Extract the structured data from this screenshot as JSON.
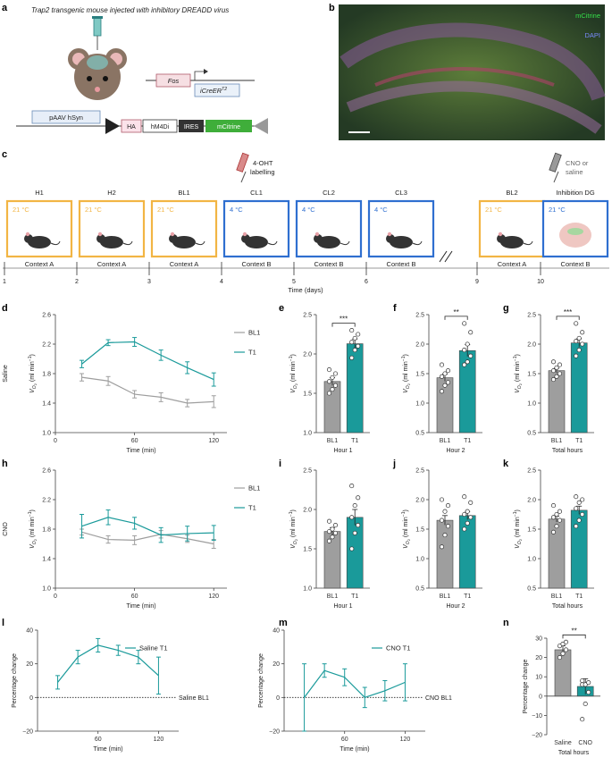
{
  "panel_labels": {
    "a": "a",
    "b": "b",
    "c": "c",
    "d": "d",
    "e": "e",
    "f": "f",
    "g": "g",
    "h": "h",
    "i": "i",
    "j": "j",
    "k": "k",
    "l": "l",
    "m": "m",
    "n": "n"
  },
  "panel_a": {
    "title": "Trap2 transgenic mouse injected with inhibitory DREADD virus",
    "fos_label": "Fos",
    "icre_label": "iCreER",
    "icre_sup": "T2",
    "construct": [
      "pAAV hSyn",
      "HA",
      "hM4Di",
      "IRES",
      "mCitrine"
    ]
  },
  "panel_b": {
    "legend_mcitrine": "mCitrine",
    "legend_dapi": "DAPI"
  },
  "panel_c": {
    "labelling": [
      "4-OHT",
      "labelling"
    ],
    "cno": [
      "CNO or",
      "saline"
    ],
    "sessions": [
      {
        "name": "H1",
        "temp": "21 °C",
        "context": "Context A",
        "day": "1",
        "color": "#F2B544"
      },
      {
        "name": "H2",
        "temp": "21 °C",
        "context": "Context A",
        "day": "2",
        "color": "#F2B544"
      },
      {
        "name": "BL1",
        "temp": "21 °C",
        "context": "Context A",
        "day": "3",
        "color": "#F2B544"
      },
      {
        "name": "CL1",
        "temp": "4 °C",
        "context": "Context B",
        "day": "4",
        "color": "#2F6FD0"
      },
      {
        "name": "CL2",
        "temp": "4 °C",
        "context": "Context B",
        "day": "5",
        "color": "#2F6FD0"
      },
      {
        "name": "CL3",
        "temp": "4 °C",
        "context": "Context B",
        "day": "6",
        "color": "#2F6FD0"
      },
      {
        "name": "BL2",
        "temp": "21 °C",
        "context": "Context A",
        "day": "9",
        "color": "#F2B544"
      },
      {
        "name": "Inhibition DG",
        "temp": "21 °C",
        "context": "Context B",
        "day": "10",
        "color": "#2F6FD0"
      }
    ],
    "axis_label": "Time (days)"
  },
  "common": {
    "vo2_label": "V",
    "vo2_sub": "O",
    "vo2_subsub": "2",
    "vo2_unit": " (ml min",
    "vo2_unit_sup": "−1",
    "vo2_unit_end": ")",
    "time_label": "Time (min)",
    "pct_label": "Percentage change"
  },
  "chart_data": [
    {
      "panel": "d",
      "type": "line",
      "row_label": "Saline",
      "xlabel": "Time (min)",
      "ylabel": "V O2 (ml min−1)",
      "xlim": [
        0,
        130
      ],
      "ylim": [
        1.0,
        2.6
      ],
      "xticks": [
        0,
        60,
        120
      ],
      "yticks": [
        1.0,
        1.4,
        1.8,
        2.2,
        2.6
      ],
      "series": [
        {
          "name": "BL1",
          "color": "#9E9E9E",
          "x": [
            20,
            40,
            60,
            80,
            100,
            120
          ],
          "y": [
            1.75,
            1.7,
            1.52,
            1.48,
            1.4,
            1.42
          ],
          "err": [
            0.05,
            0.06,
            0.05,
            0.06,
            0.05,
            0.08
          ]
        },
        {
          "name": "T1",
          "color": "#1A9A9A",
          "x": [
            20,
            40,
            60,
            80,
            100,
            120
          ],
          "y": [
            1.93,
            2.22,
            2.23,
            2.05,
            1.88,
            1.72
          ],
          "err": [
            0.05,
            0.04,
            0.06,
            0.07,
            0.08,
            0.09
          ]
        }
      ]
    },
    {
      "panel": "e",
      "type": "bar",
      "categories": [
        "BL1",
        "T1"
      ],
      "values": [
        1.65,
        2.13
      ],
      "err": [
        0.05,
        0.06
      ],
      "colors": [
        "#9E9E9E",
        "#1A9A9A"
      ],
      "points": [
        [
          1.5,
          1.55,
          1.6,
          1.65,
          1.7,
          1.75,
          1.8
        ],
        [
          1.95,
          2.05,
          2.1,
          2.15,
          2.2,
          2.25,
          2.3
        ]
      ],
      "ylim": [
        1.0,
        2.5
      ],
      "yticks": [
        1.0,
        1.5,
        2.0,
        2.5
      ],
      "xlabel": "Hour 1",
      "ylabel": "V O2 (ml min−1)",
      "sig": "***"
    },
    {
      "panel": "f",
      "type": "bar",
      "categories": [
        "BL1",
        "T1"
      ],
      "values": [
        1.43,
        1.89
      ],
      "err": [
        0.06,
        0.1
      ],
      "colors": [
        "#9E9E9E",
        "#1A9A9A"
      ],
      "points": [
        [
          1.2,
          1.3,
          1.35,
          1.45,
          1.5,
          1.55,
          1.65
        ],
        [
          1.65,
          1.7,
          1.8,
          1.9,
          2.0,
          2.2,
          2.35
        ]
      ],
      "ylim": [
        0.5,
        2.5
      ],
      "yticks": [
        0.5,
        1.0,
        1.5,
        2.0,
        2.5
      ],
      "xlabel": "Hour 2",
      "ylabel": "V O2 (ml min−1)",
      "sig": "**"
    },
    {
      "panel": "g",
      "type": "bar",
      "categories": [
        "BL1",
        "T1"
      ],
      "values": [
        1.55,
        2.02
      ],
      "err": [
        0.04,
        0.07
      ],
      "colors": [
        "#9E9E9E",
        "#1A9A9A"
      ],
      "points": [
        [
          1.4,
          1.45,
          1.5,
          1.55,
          1.6,
          1.65,
          1.7
        ],
        [
          1.8,
          1.9,
          2.0,
          2.05,
          2.1,
          2.2,
          2.35
        ]
      ],
      "ylim": [
        0.5,
        2.5
      ],
      "yticks": [
        0.5,
        1.0,
        1.5,
        2.0,
        2.5
      ],
      "xlabel": "Total hours",
      "ylabel": "V O2 (ml min−1)",
      "sig": "***"
    },
    {
      "panel": "h",
      "type": "line",
      "row_label": "CNO",
      "xlabel": "Time (min)",
      "ylabel": "V O2 (ml min−1)",
      "xlim": [
        0,
        130
      ],
      "ylim": [
        1.0,
        2.6
      ],
      "xticks": [
        0,
        60,
        120
      ],
      "yticks": [
        1.0,
        1.4,
        1.8,
        2.2,
        2.6
      ],
      "series": [
        {
          "name": "BL1",
          "color": "#9E9E9E",
          "x": [
            20,
            40,
            60,
            80,
            100,
            120
          ],
          "y": [
            1.76,
            1.66,
            1.65,
            1.73,
            1.67,
            1.6
          ],
          "err": [
            0.04,
            0.05,
            0.06,
            0.05,
            0.05,
            0.06
          ]
        },
        {
          "name": "T1",
          "color": "#1A9A9A",
          "x": [
            20,
            40,
            60,
            80,
            100,
            120
          ],
          "y": [
            1.84,
            1.96,
            1.88,
            1.72,
            1.74,
            1.75
          ],
          "err": [
            0.16,
            0.1,
            0.08,
            0.1,
            0.1,
            0.1
          ]
        }
      ]
    },
    {
      "panel": "i",
      "type": "bar",
      "categories": [
        "BL1",
        "T1"
      ],
      "values": [
        1.72,
        1.9
      ],
      "err": [
        0.05,
        0.1
      ],
      "colors": [
        "#9E9E9E",
        "#1A9A9A"
      ],
      "points": [
        [
          1.6,
          1.65,
          1.7,
          1.72,
          1.75,
          1.8,
          1.85
        ],
        [
          1.5,
          1.7,
          1.8,
          1.9,
          2.05,
          2.15,
          2.3
        ]
      ],
      "ylim": [
        1.0,
        2.5
      ],
      "yticks": [
        1.0,
        1.5,
        2.0,
        2.5
      ],
      "xlabel": "Hour 1",
      "ylabel": "V O2 (ml min−1)",
      "sig": ""
    },
    {
      "panel": "j",
      "type": "bar",
      "categories": [
        "BL1",
        "T1"
      ],
      "values": [
        1.65,
        1.73
      ],
      "err": [
        0.08,
        0.07
      ],
      "colors": [
        "#9E9E9E",
        "#1A9A9A"
      ],
      "points": [
        [
          1.2,
          1.4,
          1.55,
          1.65,
          1.8,
          1.9,
          2.0
        ],
        [
          1.5,
          1.6,
          1.7,
          1.75,
          1.8,
          1.95,
          2.05
        ]
      ],
      "ylim": [
        0.5,
        2.5
      ],
      "yticks": [
        0.5,
        1.0,
        1.5,
        2.0,
        2.5
      ],
      "xlabel": "Hour 2",
      "ylabel": "V O2 (ml min−1)",
      "sig": ""
    },
    {
      "panel": "k",
      "type": "bar",
      "categories": [
        "BL1",
        "T1"
      ],
      "values": [
        1.67,
        1.82
      ],
      "err": [
        0.05,
        0.07
      ],
      "colors": [
        "#9E9E9E",
        "#1A9A9A"
      ],
      "points": [
        [
          1.45,
          1.55,
          1.65,
          1.7,
          1.75,
          1.8,
          1.9
        ],
        [
          1.55,
          1.65,
          1.75,
          1.85,
          1.95,
          2.0,
          2.05
        ]
      ],
      "ylim": [
        0.5,
        2.5
      ],
      "yticks": [
        0.5,
        1.0,
        1.5,
        2.0,
        2.5
      ],
      "xlabel": "Total hours",
      "ylabel": "V O2 (ml min−1)",
      "sig": ""
    },
    {
      "panel": "l",
      "type": "line",
      "xlabel": "Time (min)",
      "ylabel": "Percentage change",
      "xlim": [
        0,
        140
      ],
      "ylim": [
        -20,
        40
      ],
      "xticks": [
        60,
        120
      ],
      "yticks": [
        -20,
        0,
        20,
        40
      ],
      "baseline_label": "Saline BL1",
      "series": [
        {
          "name": "Saline T1",
          "color": "#1A9A9A",
          "x": [
            20,
            40,
            60,
            80,
            100,
            120
          ],
          "y": [
            9,
            24,
            31,
            28,
            24,
            13
          ],
          "err": [
            4,
            4,
            4,
            3,
            4,
            11
          ]
        }
      ]
    },
    {
      "panel": "m",
      "type": "line",
      "xlabel": "Time (min)",
      "ylabel": "Percentage change",
      "xlim": [
        0,
        140
      ],
      "ylim": [
        -20,
        40
      ],
      "xticks": [
        60,
        120
      ],
      "yticks": [
        -20,
        0,
        20,
        40
      ],
      "baseline_label": "CNO BL1",
      "series": [
        {
          "name": "CNO T1",
          "color": "#1A9A9A",
          "x": [
            20,
            40,
            60,
            80,
            100,
            120
          ],
          "y": [
            0,
            16,
            12,
            0,
            4,
            9
          ],
          "err": [
            20,
            4,
            5,
            6,
            6,
            11
          ]
        }
      ]
    },
    {
      "panel": "n",
      "type": "bar",
      "categories": [
        "Saline",
        "CNO"
      ],
      "values": [
        24,
        5
      ],
      "err": [
        2,
        4
      ],
      "colors": [
        "#9E9E9E",
        "#1A9A9A"
      ],
      "points": [
        [
          20,
          22,
          24,
          26,
          27,
          28
        ],
        [
          -12,
          -4,
          2,
          6,
          6,
          7,
          8
        ]
      ],
      "ylim": [
        -20,
        30
      ],
      "yticks": [
        -20,
        -10,
        0,
        10,
        20,
        30
      ],
      "xlabel": "Total hours",
      "ylabel": "Percentage change",
      "sig": "**"
    }
  ]
}
